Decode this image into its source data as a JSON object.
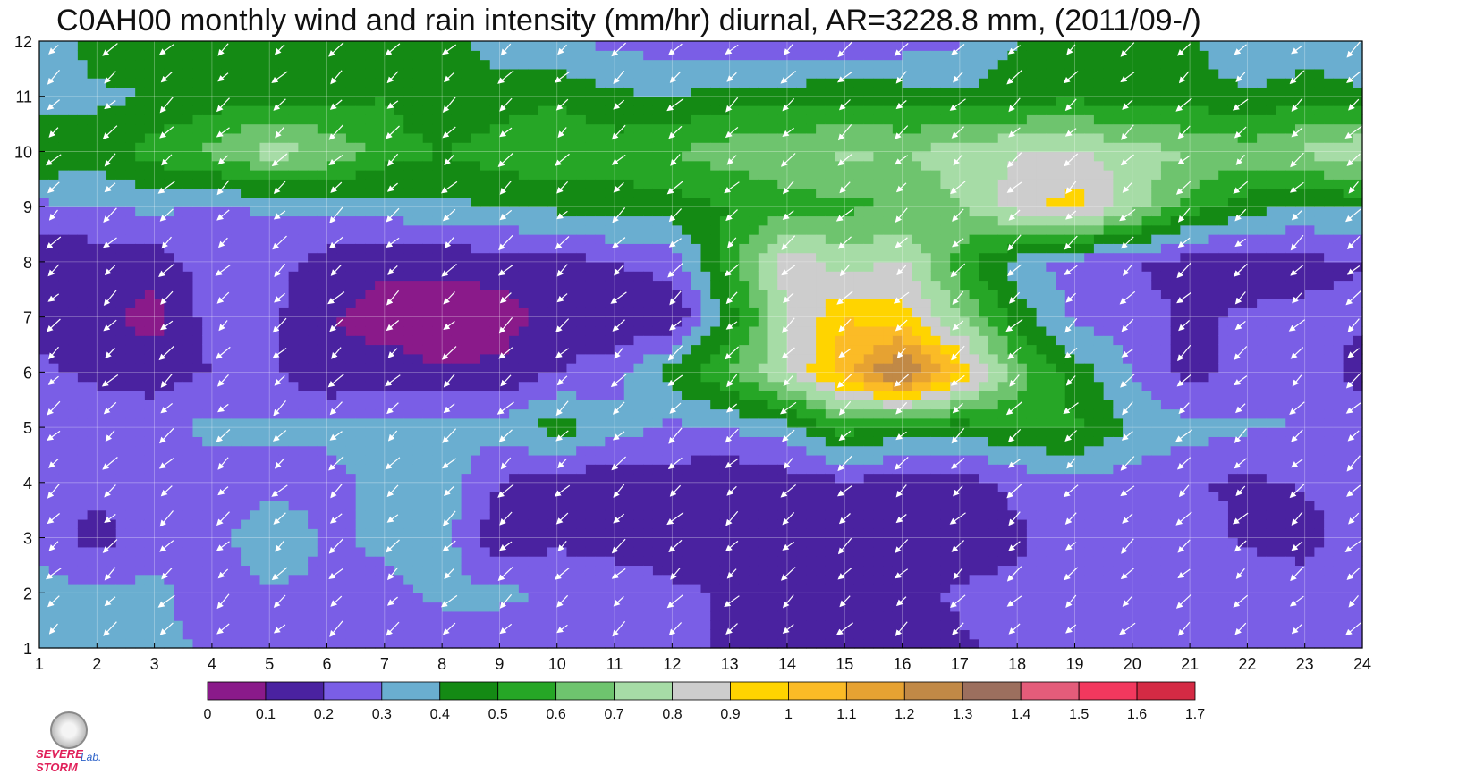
{
  "chart_data": {
    "type": "heatmap",
    "title": "C0AH00 monthly wind and rain intensity (mm/hr) diurnal, AR=3228.8 mm, (2011/09-/)",
    "xlabel": "",
    "ylabel": "",
    "x_ticks": [
      "1",
      "2",
      "3",
      "4",
      "5",
      "6",
      "7",
      "8",
      "9",
      "10",
      "11",
      "12",
      "13",
      "14",
      "15",
      "16",
      "17",
      "18",
      "19",
      "20",
      "21",
      "22",
      "23",
      "24"
    ],
    "y_ticks": [
      "1",
      "2",
      "3",
      "4",
      "5",
      "6",
      "7",
      "8",
      "9",
      "10",
      "11",
      "12"
    ],
    "xlim": [
      1,
      24
    ],
    "ylim": [
      1,
      12
    ],
    "grid": true,
    "colorbar": {
      "levels": [
        "0",
        "0.1",
        "0.2",
        "0.3",
        "0.4",
        "0.5",
        "0.6",
        "0.7",
        "0.8",
        "0.9",
        "1",
        "1.1",
        "1.2",
        "1.3",
        "1.4",
        "1.5",
        "1.6",
        "1.7"
      ],
      "colors": [
        "#8a1a8a",
        "#4a22a0",
        "#7a5ee6",
        "#6aaed0",
        "#148a14",
        "#26a626",
        "#6ec46e",
        "#a6dca6",
        "#cdcdcd",
        "#ffd400",
        "#fbbb26",
        "#e6a232",
        "#c18946",
        "#9c6f5e",
        "#e45c7a",
        "#f2385e",
        "#d42a44"
      ]
    },
    "values": [
      [
        0.35,
        0.31,
        0.32,
        0.29,
        0.27,
        0.24,
        0.22,
        0.25,
        0.21,
        0.2,
        0.25,
        0.22,
        0.19,
        0.18,
        0.15,
        0.14,
        0.19,
        0.22,
        0.25,
        0.24,
        0.28,
        0.28,
        0.25,
        0.24
      ],
      [
        0.34,
        0.32,
        0.32,
        0.25,
        0.28,
        0.29,
        0.27,
        0.32,
        0.33,
        0.28,
        0.27,
        0.22,
        0.19,
        0.18,
        0.19,
        0.18,
        0.21,
        0.23,
        0.25,
        0.22,
        0.24,
        0.27,
        0.26,
        0.25
      ],
      [
        0.27,
        0.15,
        0.28,
        0.25,
        0.38,
        0.28,
        0.32,
        0.35,
        0.12,
        0.18,
        0.15,
        0.14,
        0.17,
        0.17,
        0.17,
        0.16,
        0.15,
        0.18,
        0.28,
        0.25,
        0.26,
        0.18,
        0.15,
        0.28
      ],
      [
        0.24,
        0.25,
        0.24,
        0.25,
        0.27,
        0.27,
        0.33,
        0.35,
        0.2,
        0.14,
        0.12,
        0.15,
        0.11,
        0.15,
        0.18,
        0.16,
        0.14,
        0.23,
        0.26,
        0.25,
        0.21,
        0.18,
        0.21,
        0.25
      ],
      [
        0.25,
        0.25,
        0.25,
        0.33,
        0.31,
        0.32,
        0.34,
        0.35,
        0.33,
        0.45,
        0.35,
        0.28,
        0.31,
        0.35,
        0.55,
        0.45,
        0.45,
        0.5,
        0.52,
        0.38,
        0.34,
        0.31,
        0.3,
        0.29
      ],
      [
        0.22,
        0.18,
        0.16,
        0.2,
        0.23,
        0.11,
        0.14,
        0.11,
        0.12,
        0.2,
        0.25,
        0.45,
        0.6,
        0.8,
        1.05,
        1.35,
        1.0,
        0.65,
        0.45,
        0.3,
        0.15,
        0.25,
        0.28,
        0.15
      ],
      [
        0.17,
        0.15,
        0.05,
        0.25,
        0.22,
        0.11,
        0.06,
        0.04,
        0.05,
        0.15,
        0.12,
        0.1,
        0.45,
        0.78,
        1.0,
        0.95,
        0.7,
        0.45,
        0.28,
        0.25,
        0.18,
        0.22,
        0.22,
        0.22
      ],
      [
        0.13,
        0.13,
        0.15,
        0.25,
        0.25,
        0.15,
        0.12,
        0.12,
        0.15,
        0.16,
        0.2,
        0.25,
        0.55,
        0.88,
        0.75,
        0.82,
        0.55,
        0.35,
        0.25,
        0.21,
        0.15,
        0.13,
        0.17,
        0.2
      ],
      [
        0.28,
        0.3,
        0.32,
        0.29,
        0.31,
        0.33,
        0.35,
        0.38,
        0.4,
        0.42,
        0.45,
        0.45,
        0.5,
        0.55,
        0.58,
        0.6,
        0.7,
        0.85,
        0.95,
        0.75,
        0.55,
        0.45,
        0.38,
        0.42
      ],
      [
        0.5,
        0.45,
        0.55,
        0.62,
        0.75,
        0.7,
        0.55,
        0.5,
        0.55,
        0.6,
        0.55,
        0.6,
        0.65,
        0.68,
        0.72,
        0.7,
        0.75,
        0.8,
        0.82,
        0.75,
        0.7,
        0.65,
        0.72,
        0.8
      ],
      [
        0.35,
        0.38,
        0.4,
        0.45,
        0.48,
        0.45,
        0.5,
        0.4,
        0.45,
        0.48,
        0.42,
        0.4,
        0.45,
        0.45,
        0.48,
        0.45,
        0.42,
        0.45,
        0.48,
        0.42,
        0.45,
        0.42,
        0.45,
        0.42
      ],
      [
        0.32,
        0.45,
        0.48,
        0.42,
        0.42,
        0.44,
        0.4,
        0.45,
        0.35,
        0.3,
        0.28,
        0.25,
        0.22,
        0.2,
        0.23,
        0.25,
        0.28,
        0.4,
        0.45,
        0.48,
        0.42,
        0.3,
        0.35,
        0.32
      ]
    ],
    "wind_arrows": "white arrows, predominantly pointing toward lower-left (south-west)"
  },
  "branding": {
    "logo_line1": "SEVERE STORM",
    "logo_line2": "Lab."
  }
}
